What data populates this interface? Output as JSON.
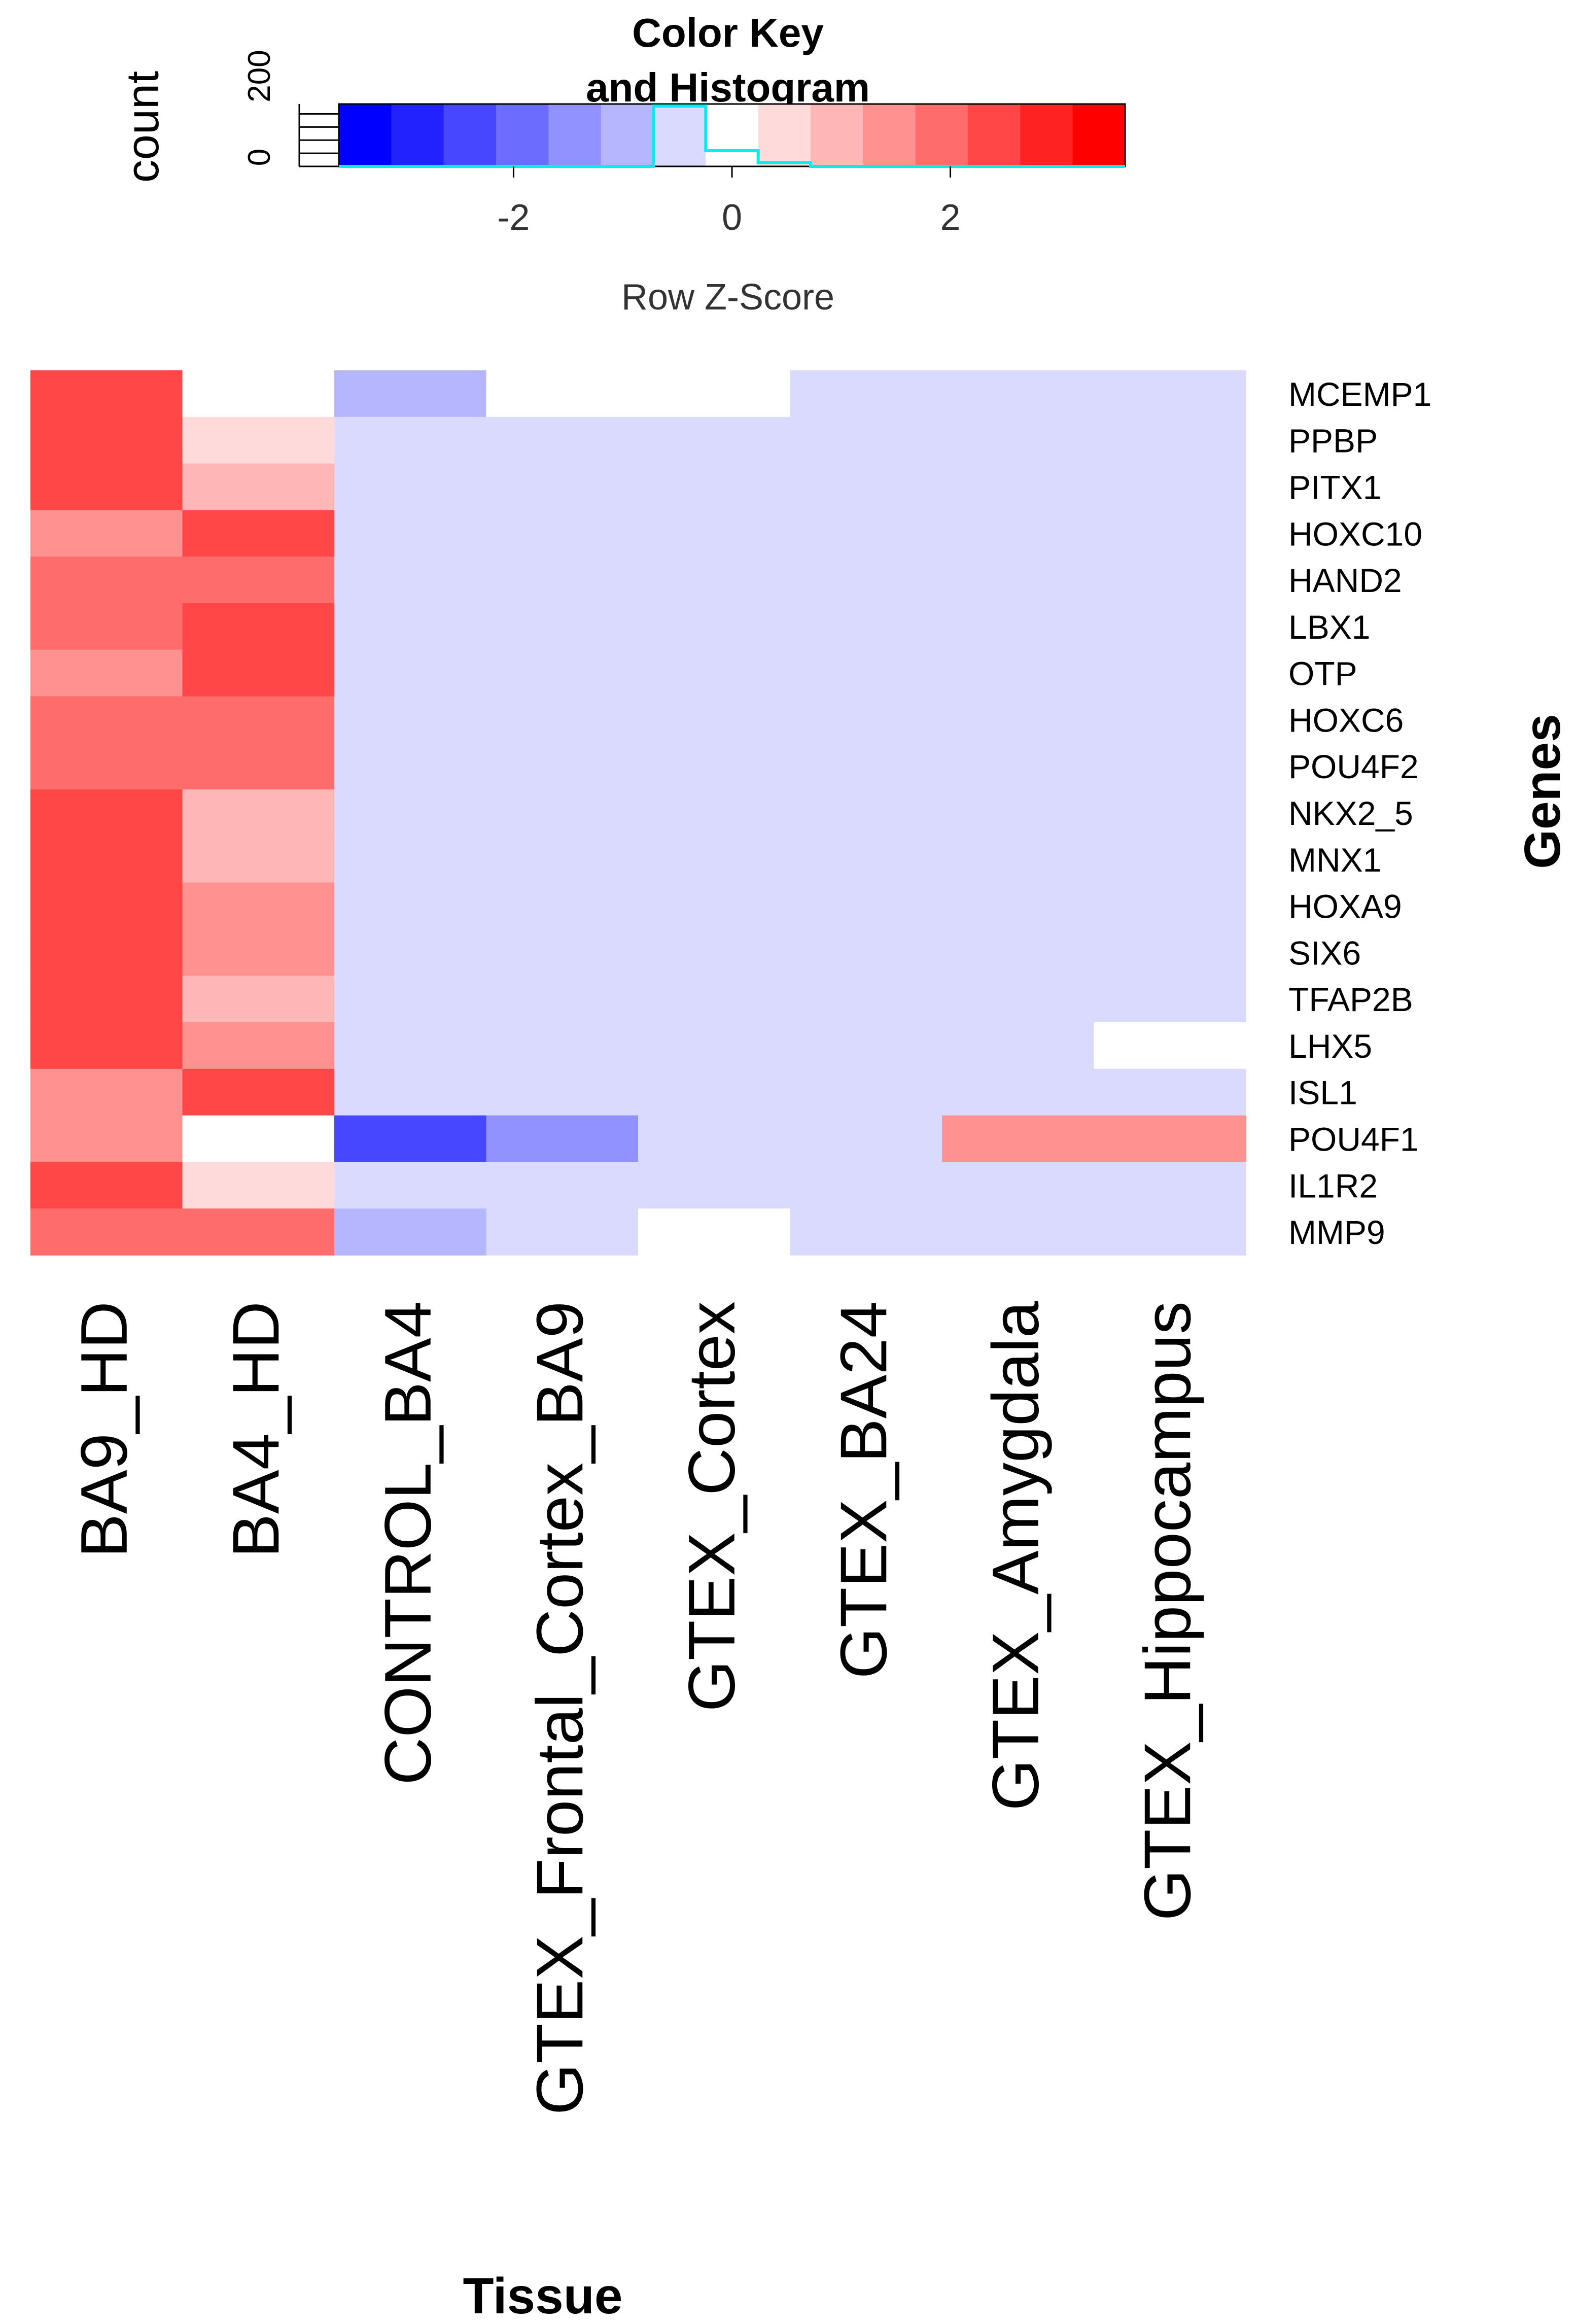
{
  "chart_data": {
    "type": "heatmap",
    "key": {
      "title_line1": "Color Key",
      "title_line2": "and Histogram",
      "xlabel": "Row Z-Score",
      "ylabel": "count",
      "x_ticks": [
        "-2",
        "0",
        "2"
      ],
      "x_tick_values": [
        -2,
        0,
        2
      ],
      "y_ticks": [
        "0",
        "200"
      ],
      "y_tick_values": [
        0,
        200
      ],
      "xlim": [
        -3.6,
        3.6
      ],
      "histogram_bins": [
        {
          "from": -3.6,
          "to": -0.72,
          "count": 0
        },
        {
          "from": -0.72,
          "to": -0.24,
          "count": 230
        },
        {
          "from": -0.24,
          "to": 0.24,
          "count": 60
        },
        {
          "from": 0.24,
          "to": 0.72,
          "count": 15
        },
        {
          "from": 0.72,
          "to": 3.6,
          "count": 0
        }
      ],
      "colors": [
        "#0000ff",
        "#2222ff",
        "#4747ff",
        "#6c6cff",
        "#9191ff",
        "#b6b6ff",
        "#dadaff",
        "#ffffff",
        "#ffdada",
        "#ffb6b6",
        "#ff9191",
        "#ff6c6c",
        "#ff4747",
        "#ff2222",
        "#ff0000"
      ],
      "histogram_color": "#00eeee"
    },
    "xlabel": "Tissue",
    "ylabel": "Genes",
    "columns": [
      "BA9_HD",
      "BA4_HD",
      "CONTROL_BA4",
      "GTEX_Frontal_Cortex_BA9",
      "GTEX_Cortex",
      "GTEX_BA24",
      "GTEX_Amygdala",
      "GTEX_Hippocampus"
    ],
    "rows": [
      "MCEMP1",
      "PPBP",
      "PITX1",
      "HOXC10",
      "HAND2",
      "LBX1",
      "OTP",
      "HOXC6",
      "POU4F2",
      "NKX2_5",
      "MNX1",
      "HOXA9",
      "SIX6",
      "TFAP2B",
      "LHX5",
      "ISL1",
      "POU4F1",
      "IL1R2",
      "MMP9"
    ],
    "values": [
      [
        2.6,
        0.0,
        -1.2,
        0.0,
        0.0,
        -0.5,
        -0.5,
        -0.5
      ],
      [
        2.6,
        0.6,
        -0.7,
        -0.5,
        -0.5,
        -0.7,
        -0.5,
        -0.5
      ],
      [
        2.6,
        1.1,
        -0.7,
        -0.7,
        -0.5,
        -0.7,
        -0.7,
        -0.5
      ],
      [
        1.6,
        2.4,
        -0.7,
        -0.7,
        -0.7,
        -0.7,
        -0.7,
        -0.7
      ],
      [
        2.0,
        2.0,
        -0.5,
        -0.7,
        -0.7,
        -0.7,
        -0.7,
        -0.7
      ],
      [
        2.0,
        2.4,
        -0.5,
        -0.7,
        -0.5,
        -0.7,
        -0.7,
        -0.7
      ],
      [
        1.6,
        2.4,
        -0.7,
        -0.7,
        -0.7,
        -0.7,
        -0.7,
        -0.7
      ],
      [
        2.0,
        2.0,
        -0.7,
        -0.7,
        -0.7,
        -0.7,
        -0.7,
        -0.7
      ],
      [
        2.0,
        2.0,
        -0.5,
        -0.7,
        -0.7,
        -0.7,
        -0.7,
        -0.7
      ],
      [
        2.6,
        1.1,
        -0.7,
        -0.5,
        -0.5,
        -0.5,
        -0.7,
        -0.5
      ],
      [
        2.6,
        1.1,
        -0.5,
        -0.5,
        -0.5,
        -0.7,
        -0.7,
        -0.5
      ],
      [
        2.4,
        1.6,
        -0.7,
        -0.7,
        -0.5,
        -0.5,
        -0.7,
        -0.7
      ],
      [
        2.4,
        1.6,
        -0.5,
        -0.7,
        -0.7,
        -0.7,
        -0.7,
        -0.7
      ],
      [
        2.6,
        1.1,
        -0.5,
        -0.7,
        -0.5,
        -0.7,
        -0.7,
        -0.7
      ],
      [
        2.4,
        1.4,
        -0.5,
        -0.7,
        -0.7,
        -0.7,
        -0.5,
        0.0
      ],
      [
        1.6,
        2.4,
        -0.5,
        -0.7,
        -0.7,
        -0.7,
        -0.7,
        -0.7
      ],
      [
        1.6,
        0.0,
        -2.6,
        -1.4,
        -0.7,
        -0.5,
        1.4,
        1.6
      ],
      [
        2.6,
        0.6,
        -0.7,
        -0.5,
        -0.5,
        -0.5,
        -0.5,
        -0.5
      ],
      [
        2.0,
        2.0,
        -1.2,
        -0.5,
        0.0,
        -0.7,
        -0.5,
        -0.5
      ]
    ]
  }
}
